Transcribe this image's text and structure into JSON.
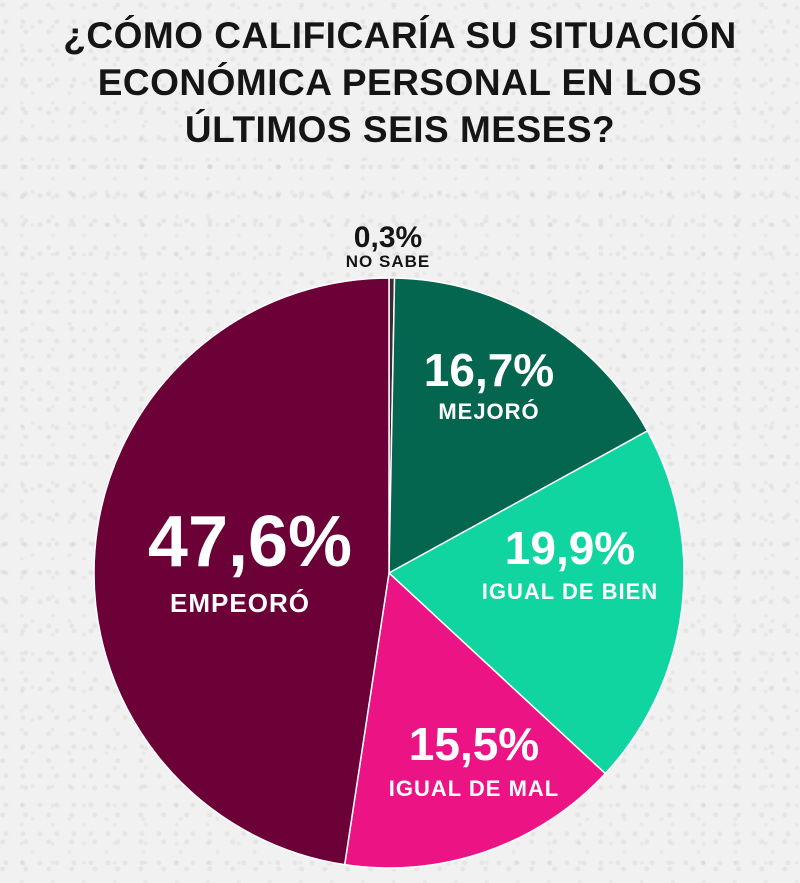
{
  "chart_data": {
    "type": "pie",
    "title": "¿CÓMO CALIFICARÍA SU SITUACIÓN ECONÓMICA PERSONAL EN LOS ÚLTIMOS SEIS MESES?",
    "title_lines": [
      "¿CÓMO CALIFICARÍA SU SITUACIÓN",
      "ECONÓMICA PERSONAL EN LOS",
      "ÚLTIMOS SEIS MESES?"
    ],
    "slices": [
      {
        "label": "NO SABE",
        "value": 0.3,
        "value_label": "0,3%",
        "color": "#3a2a35"
      },
      {
        "label": "MEJORÓ",
        "value": 16.7,
        "value_label": "16,7%",
        "color": "#04664f"
      },
      {
        "label": "IGUAL DE BIEN",
        "value": 19.9,
        "value_label": "19,9%",
        "color": "#11d5a1"
      },
      {
        "label": "IGUAL DE MAL",
        "value": 15.5,
        "value_label": "15,5%",
        "color": "#ec1384"
      },
      {
        "label": "EMPEORÓ",
        "value": 47.6,
        "value_label": "47,6%",
        "color": "#6c0138"
      }
    ],
    "start_angle_deg": 0,
    "direction": "clockwise"
  }
}
